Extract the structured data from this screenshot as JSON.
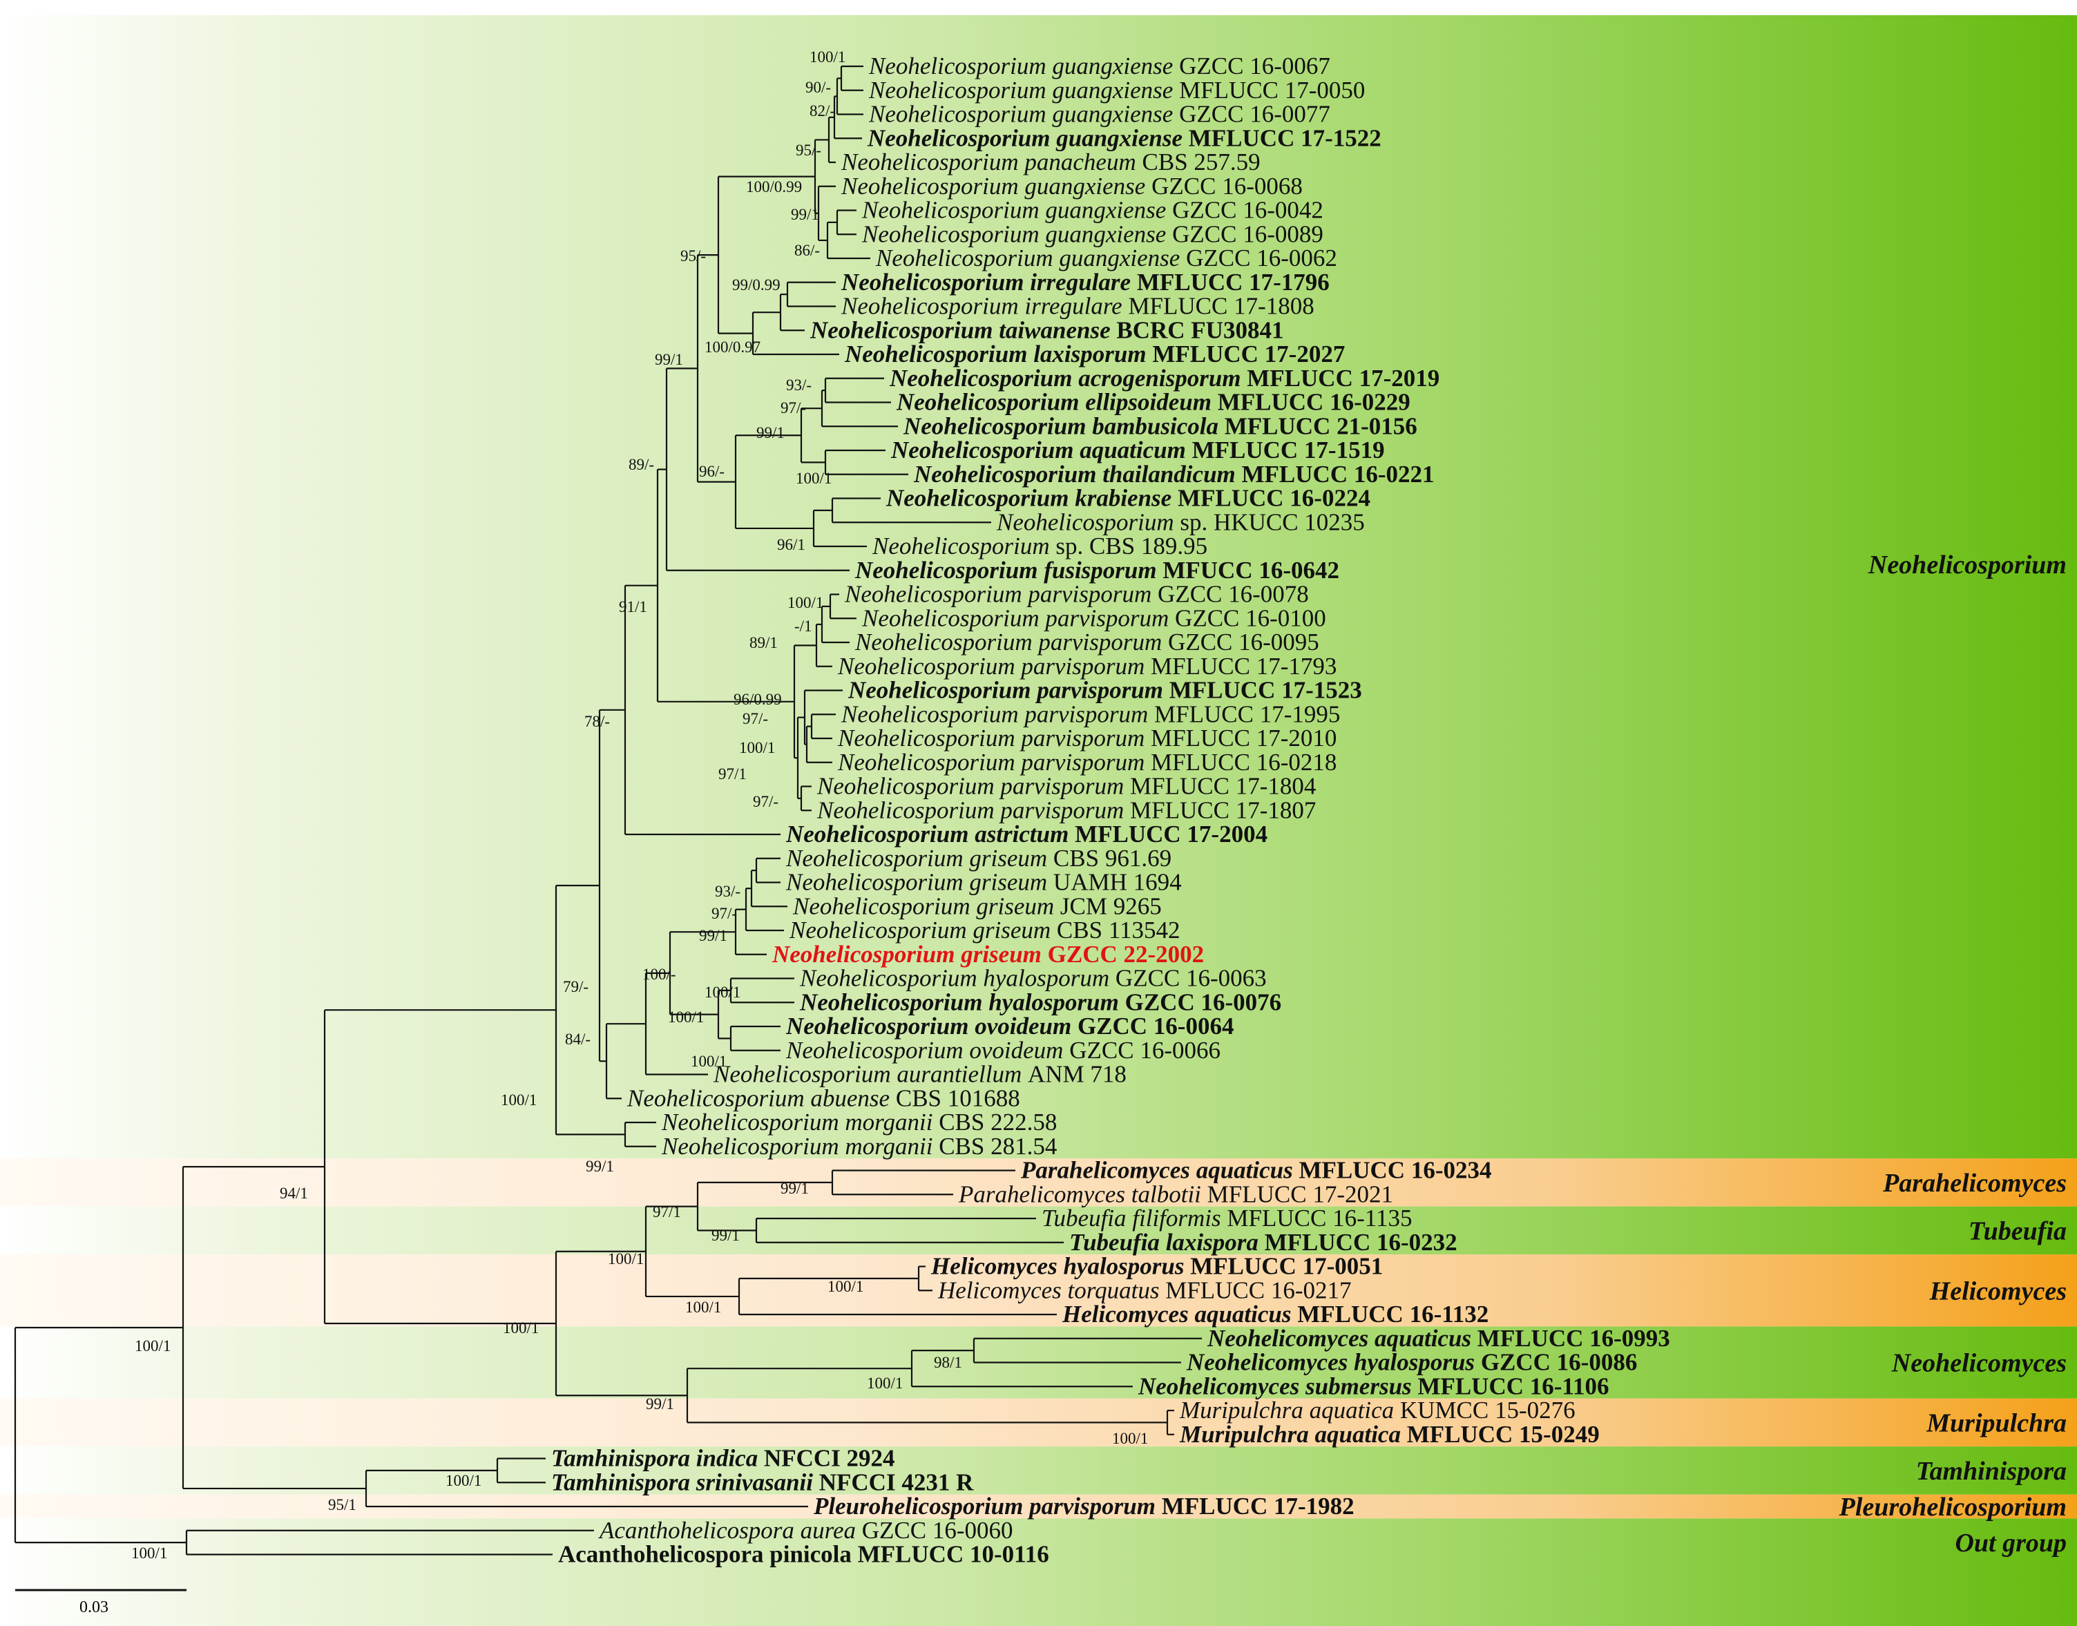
{
  "figure": {
    "scale_label": "0.03",
    "colors": {
      "band_green": "#a6d86a",
      "band_green_dark": "#6bbd12",
      "band_orange": "#fbd8b4",
      "band_orange_dark": "#f5a31c",
      "line": "#111111",
      "highlight": "#e01414"
    }
  },
  "taxa": [
    {
      "genus": "Neohelicosporium",
      "species": "guangxiense",
      "strain": "GZCC 16-0067",
      "bold": false
    },
    {
      "genus": "Neohelicosporium",
      "species": "guangxiense",
      "strain": "MFLUCC 17-0050",
      "bold": false
    },
    {
      "genus": "Neohelicosporium",
      "species": "guangxiense",
      "strain": "GZCC 16-0077",
      "bold": false
    },
    {
      "genus": "Neohelicosporium",
      "species": "guangxiense",
      "strain": "MFLUCC 17-1522",
      "bold": true
    },
    {
      "genus": "Neohelicosporium",
      "species": "panacheum",
      "strain": "CBS 257.59",
      "bold": false
    },
    {
      "genus": "Neohelicosporium",
      "species": "guangxiense",
      "strain": "GZCC 16-0068",
      "bold": false
    },
    {
      "genus": "Neohelicosporium",
      "species": "guangxiense",
      "strain": "GZCC 16-0042",
      "bold": false
    },
    {
      "genus": "Neohelicosporium",
      "species": "guangxiense",
      "strain": "GZCC 16-0089",
      "bold": false
    },
    {
      "genus": "Neohelicosporium",
      "species": "guangxiense",
      "strain": "GZCC 16-0062",
      "bold": false
    },
    {
      "genus": "Neohelicosporium",
      "species": "irregulare",
      "strain": "MFLUCC 17-1796",
      "bold": true
    },
    {
      "genus": "Neohelicosporium",
      "species": "irregulare",
      "strain": "MFLUCC 17-1808",
      "bold": false
    },
    {
      "genus": "Neohelicosporium",
      "species": "taiwanense",
      "strain": "BCRC FU30841",
      "bold": true
    },
    {
      "genus": "Neohelicosporium",
      "species": "laxisporum",
      "strain": "MFLUCC 17-2027",
      "bold": true
    },
    {
      "genus": "Neohelicosporium",
      "species": "acrogenisporum",
      "strain": "MFLUCC 17-2019",
      "bold": true
    },
    {
      "genus": "Neohelicosporium",
      "species": "ellipsoideum",
      "strain": "MFLUCC 16-0229",
      "bold": true
    },
    {
      "genus": "Neohelicosporium",
      "species": "bambusicola",
      "strain": "MFLUCC 21-0156",
      "bold": true
    },
    {
      "genus": "Neohelicosporium",
      "species": "aquaticum",
      "strain": "MFLUCC 17-1519",
      "bold": true
    },
    {
      "genus": "Neohelicosporium",
      "species": "thailandicum",
      "strain": "MFLUCC 16-0221",
      "bold": true
    },
    {
      "genus": "Neohelicosporium",
      "species": "krabiense",
      "strain": "MFLUCC 16-0224",
      "bold": true
    },
    {
      "genus": "Neohelicosporium",
      "species": "sp.",
      "strain": "HKUCC 10235",
      "bold": false
    },
    {
      "genus": "Neohelicosporium",
      "species": "sp.",
      "strain": "CBS 189.95",
      "bold": false
    },
    {
      "genus": "Neohelicosporium",
      "species": "fusisporum",
      "strain": "MFUCC 16-0642",
      "bold": true
    },
    {
      "genus": "Neohelicosporium",
      "species": "parvisporum",
      "strain": "GZCC 16-0078",
      "bold": false
    },
    {
      "genus": "Neohelicosporium",
      "species": "parvisporum",
      "strain": "GZCC 16-0100",
      "bold": false
    },
    {
      "genus": "Neohelicosporium",
      "species": "parvisporum",
      "strain": "GZCC 16-0095",
      "bold": false
    },
    {
      "genus": "Neohelicosporium",
      "species": "parvisporum",
      "strain": "MFLUCC 17-1793",
      "bold": false
    },
    {
      "genus": "Neohelicosporium",
      "species": "parvisporum",
      "strain": "MFLUCC 17-1523",
      "bold": true
    },
    {
      "genus": "Neohelicosporium",
      "species": "parvisporum",
      "strain": "MFLUCC 17-1995",
      "bold": false
    },
    {
      "genus": "Neohelicosporium",
      "species": "parvisporum",
      "strain": "MFLUCC 17-2010",
      "bold": false
    },
    {
      "genus": "Neohelicosporium",
      "species": "parvisporum",
      "strain": "MFLUCC 16-0218",
      "bold": false
    },
    {
      "genus": "Neohelicosporium",
      "species": "parvisporum",
      "strain": "MFLUCC 17-1804",
      "bold": false
    },
    {
      "genus": "Neohelicosporium",
      "species": "parvisporum",
      "strain": "MFLUCC 17-1807",
      "bold": false
    },
    {
      "genus": "Neohelicosporium",
      "species": "astrictum",
      "strain": "MFLUCC 17-2004",
      "bold": true
    },
    {
      "genus": "Neohelicosporium",
      "species": "griseum",
      "strain": "CBS 961.69",
      "bold": false
    },
    {
      "genus": "Neohelicosporium",
      "species": "griseum",
      "strain": "UAMH 1694",
      "bold": false
    },
    {
      "genus": "Neohelicosporium",
      "species": "griseum",
      "strain": "JCM 9265",
      "bold": false
    },
    {
      "genus": "Neohelicosporium",
      "species": "griseum",
      "strain": "CBS 113542",
      "bold": false
    },
    {
      "genus": "Neohelicosporium",
      "species": "griseum",
      "strain": "GZCC 22-2002",
      "bold": true,
      "highlight": true
    },
    {
      "genus": "Neohelicosporium",
      "species": "hyalosporum",
      "strain": "GZCC 16-0063",
      "bold": false
    },
    {
      "genus": "Neohelicosporium",
      "species": "hyalosporum",
      "strain": "GZCC 16-0076",
      "bold": true
    },
    {
      "genus": "Neohelicosporium",
      "species": "ovoideum",
      "strain": "GZCC 16-0064",
      "bold": true
    },
    {
      "genus": "Neohelicosporium",
      "species": "ovoideum",
      "strain": "GZCC 16-0066",
      "bold": false
    },
    {
      "genus": "Neohelicosporium",
      "species": "aurantiellum",
      "strain": "ANM 718",
      "bold": false
    },
    {
      "genus": "Neohelicosporium",
      "species": "abuense",
      "strain": "CBS 101688",
      "bold": false
    },
    {
      "genus": "Neohelicosporium",
      "species": "morganii",
      "strain": "CBS 222.58",
      "bold": false
    },
    {
      "genus": "Neohelicosporium",
      "species": "morganii",
      "strain": "CBS 281.54",
      "bold": false
    },
    {
      "genus": "Parahelicomyces",
      "species": "aquaticus",
      "strain": "MFLUCC 16-0234",
      "bold": true
    },
    {
      "genus": "Parahelicomyces",
      "species": "talbotii",
      "strain": "MFLUCC 17-2021",
      "bold": false
    },
    {
      "genus": "Tubeufia",
      "species": "filiformis",
      "strain": "MFLUCC 16-1135",
      "bold": false
    },
    {
      "genus": "Tubeufia",
      "species": "laxispora",
      "strain": "MFLUCC 16-0232",
      "bold": true
    },
    {
      "genus": "Helicomyces",
      "species": "hyalosporus",
      "strain": "MFLUCC 17-0051",
      "bold": true
    },
    {
      "genus": "Helicomyces",
      "species": "torquatus",
      "strain": "MFLUCC 16-0217",
      "bold": false
    },
    {
      "genus": "Helicomyces",
      "species": "aquaticus",
      "strain": "MFLUCC 16-1132",
      "bold": true
    },
    {
      "genus": "Neohelicomyces",
      "species": "aquaticus",
      "strain": "MFLUCC 16-0993",
      "bold": true
    },
    {
      "genus": "Neohelicomyces",
      "species": "hyalosporus",
      "strain": "GZCC 16-0086",
      "bold": true
    },
    {
      "genus": "Neohelicomyces",
      "species": "submersus",
      "strain": "MFLUCC 16-1106",
      "bold": true
    },
    {
      "genus": "Muripulchra",
      "species": "aquatica",
      "strain": "KUMCC 15-0276",
      "bold": false
    },
    {
      "genus": "Muripulchra",
      "species": "aquatica",
      "strain": "MFLUCC 15-0249",
      "bold": true
    },
    {
      "genus": "Tamhinispora",
      "species": "indica",
      "strain": "NFCCI 2924",
      "bold": true
    },
    {
      "genus": "Tamhinispora",
      "species": "srinivasanii",
      "strain": "NFCCI 4231 R",
      "bold": true
    },
    {
      "genus": "Pleurohelicosporium",
      "species": "parvisporum",
      "strain": "MFLUCC 17-1982",
      "bold": true
    },
    {
      "genus": "Acanthohelicospora",
      "species": "aurea",
      "strain": "GZCC 16-0060",
      "bold": false
    },
    {
      "genus": "Acanthohelicospora",
      "species": "pinicola",
      "strain": "MFLUCC 10-0116",
      "bold": true,
      "roman": true
    }
  ],
  "groups": [
    {
      "label": "Neohelicosporium",
      "first": 0,
      "last": 45,
      "color": "green"
    },
    {
      "label": "Parahelicomyces",
      "first": 46,
      "last": 47,
      "color": "orange"
    },
    {
      "label": "Tubeufia",
      "first": 48,
      "last": 49,
      "color": "green"
    },
    {
      "label": "Helicomyces",
      "first": 50,
      "last": 52,
      "color": "orange"
    },
    {
      "label": "Neohelicomyces",
      "first": 53,
      "last": 55,
      "color": "green"
    },
    {
      "label": "Muripulchra",
      "first": 56,
      "last": 57,
      "color": "orange"
    },
    {
      "label": "Tamhinispora",
      "first": 58,
      "last": 59,
      "color": "green"
    },
    {
      "label": "Pleurohelicosporium",
      "first": 60,
      "last": 60,
      "color": "orange"
    },
    {
      "label": "Out group",
      "first": 61,
      "last": 62,
      "color": "green",
      "roman": true
    }
  ],
  "support_values": [
    "100/1",
    "90/-",
    "82/-",
    "95/-",
    "100/0.99",
    "99/1",
    "86/-",
    "95/-",
    "99/0.99",
    "100/0.97",
    "99/1",
    "93/-",
    "97/-",
    "99/1",
    "100/1",
    "96/-",
    "89/-",
    "96/1",
    "91/1",
    "100/1",
    "-/1",
    "89/1",
    "96/0.99",
    "97/-",
    "100/1",
    "97/1",
    "97/-",
    "78/-",
    "93/-",
    "97/-",
    "99/1",
    "100/-",
    "100/1",
    "100/1",
    "100/1",
    "79/-",
    "84/-",
    "100/1",
    "99/1",
    "94/1",
    "100/1",
    "97/1",
    "99/1",
    "100/1",
    "99/1",
    "100/1",
    "100/1",
    "100/1",
    "98/1",
    "99/1",
    "100/1",
    "100/1",
    "100/1",
    "95/1",
    "100/1"
  ]
}
